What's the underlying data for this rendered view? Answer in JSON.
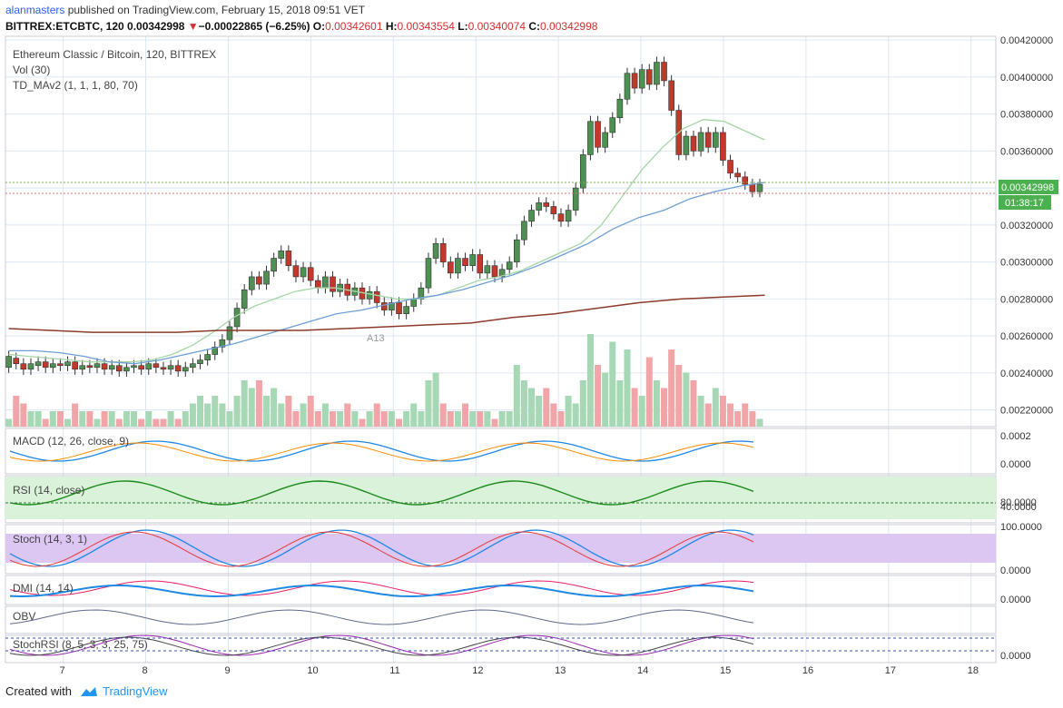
{
  "header": {
    "user": "alanmasters",
    "published": " published on TradingView.com, February 15, 2018 09:51 VET",
    "symbol": "BITTREX:ETCBTC, 120",
    "last": "0.00342998",
    "change_arrow": "▼",
    "change": "−0.00022865 (−6.25%)",
    "o_label": "O:",
    "o": "0.00342601",
    "h_label": "H:",
    "h": "0.00343554",
    "l_label": "L:",
    "l": "0.00340074",
    "c_label": "C:",
    "c": "0.00342998"
  },
  "legend": {
    "pair": "Ethereum Classic / Bitcoin, 120, BITTREX",
    "vol": "Vol (30)",
    "td": "TD_MAv2 (1, 1, 1, 80, 70)",
    "annotation": "A13"
  },
  "indicators": {
    "macd": "MACD (12, 26, close, 9)",
    "rsi": "RSI (14, close)",
    "stoch": "Stoch (14, 3, 1)",
    "dmi": "DMI (14, 14)",
    "obv": "OBV",
    "stochrsi": "StochRSI (8, 5, 3, 3, 25, 75)"
  },
  "price_badge": {
    "price": "0.00342998",
    "countdown": "01:38:17"
  },
  "footer": {
    "created": "Created with",
    "brand": "TradingView"
  },
  "colors": {
    "up": "#2e7d32",
    "down": "#c62828",
    "ma_green": "#a5d6a7",
    "ma_blue": "#6d9fd6",
    "ma_brown": "#8d3a2a",
    "grid": "#dde6f3"
  },
  "chart_data": {
    "type": "candlestick",
    "title": "Ethereum Classic / Bitcoin, 120, BITTREX",
    "x_ticks": [
      "7",
      "8",
      "9",
      "10",
      "11",
      "12",
      "13",
      "14",
      "15",
      "16",
      "17",
      "18"
    ],
    "y_ticks": [
      "0.00420000",
      "0.00400000",
      "0.00380000",
      "0.00360000",
      "0.00340000",
      "0.00320000",
      "0.00300000",
      "0.00280000",
      "0.00260000",
      "0.00240000",
      "0.00220000"
    ],
    "ylim": [
      0.00211,
      0.00422
    ],
    "x_range": [
      6.3,
      18.3
    ],
    "macd_ticks": [
      "0.0002",
      "0.0000"
    ],
    "rsi_ticks": [
      "80.0000",
      "40.0000"
    ],
    "stoch_ticks": [
      "100.0000",
      "0.0000"
    ],
    "dmi_ticks": [
      "0.0000"
    ],
    "stochrsi_ticks": [
      "0.0000"
    ],
    "ohlc": [
      [
        2.43,
        2.49
      ],
      [
        2.48,
        2.45
      ],
      [
        2.45,
        2.42
      ],
      [
        2.42,
        2.45
      ],
      [
        2.44,
        2.46
      ],
      [
        2.46,
        2.43
      ],
      [
        2.43,
        2.45
      ],
      [
        2.45,
        2.44
      ],
      [
        2.44,
        2.46
      ],
      [
        2.46,
        2.42
      ],
      [
        2.42,
        2.44
      ],
      [
        2.44,
        2.43
      ],
      [
        2.43,
        2.45
      ],
      [
        2.45,
        2.42
      ],
      [
        2.42,
        2.44
      ],
      [
        2.44,
        2.41
      ],
      [
        2.41,
        2.43
      ],
      [
        2.43,
        2.44
      ],
      [
        2.44,
        2.42
      ],
      [
        2.42,
        2.45
      ],
      [
        2.45,
        2.43
      ],
      [
        2.43,
        2.42
      ],
      [
        2.42,
        2.44
      ],
      [
        2.44,
        2.41
      ],
      [
        2.41,
        2.43
      ],
      [
        2.43,
        2.45
      ],
      [
        2.45,
        2.47
      ],
      [
        2.47,
        2.5
      ],
      [
        2.5,
        2.54
      ],
      [
        2.54,
        2.58
      ],
      [
        2.58,
        2.65
      ],
      [
        2.65,
        2.75
      ],
      [
        2.75,
        2.85
      ],
      [
        2.85,
        2.92
      ],
      [
        2.92,
        2.88
      ],
      [
        2.88,
        2.95
      ],
      [
        2.95,
        3.02
      ],
      [
        3.02,
        3.06
      ],
      [
        3.06,
        2.98
      ],
      [
        2.98,
        2.92
      ],
      [
        2.92,
        2.97
      ],
      [
        2.97,
        2.9
      ],
      [
        2.9,
        2.86
      ],
      [
        2.86,
        2.92
      ],
      [
        2.92,
        2.84
      ],
      [
        2.84,
        2.88
      ],
      [
        2.88,
        2.82
      ],
      [
        2.82,
        2.86
      ],
      [
        2.86,
        2.8
      ],
      [
        2.8,
        2.84
      ],
      [
        2.84,
        2.78
      ],
      [
        2.78,
        2.74
      ],
      [
        2.74,
        2.78
      ],
      [
        2.78,
        2.72
      ],
      [
        2.72,
        2.76
      ],
      [
        2.76,
        2.8
      ],
      [
        2.8,
        2.86
      ],
      [
        2.86,
        3.02
      ],
      [
        3.02,
        3.1
      ],
      [
        3.1,
        3.0
      ],
      [
        3.0,
        2.94
      ],
      [
        2.94,
        3.02
      ],
      [
        3.02,
        2.98
      ],
      [
        2.98,
        3.04
      ],
      [
        3.04,
        2.94
      ],
      [
        2.94,
        2.98
      ],
      [
        2.98,
        2.92
      ],
      [
        2.92,
        2.96
      ],
      [
        2.96,
        3.0
      ],
      [
        3.0,
        3.12
      ],
      [
        3.12,
        3.22
      ],
      [
        3.22,
        3.28
      ],
      [
        3.28,
        3.32
      ],
      [
        3.32,
        3.3
      ],
      [
        3.3,
        3.26
      ],
      [
        3.26,
        3.22
      ],
      [
        3.22,
        3.28
      ],
      [
        3.28,
        3.4
      ],
      [
        3.4,
        3.58
      ],
      [
        3.58,
        3.76
      ],
      [
        3.76,
        3.62
      ],
      [
        3.62,
        3.7
      ],
      [
        3.7,
        3.78
      ],
      [
        3.78,
        3.88
      ],
      [
        3.88,
        4.02
      ],
      [
        4.02,
        3.94
      ],
      [
        3.94,
        4.04
      ],
      [
        4.04,
        3.96
      ],
      [
        3.96,
        4.08
      ],
      [
        4.08,
        3.98
      ],
      [
        3.98,
        3.82
      ],
      [
        3.82,
        3.58
      ],
      [
        3.58,
        3.68
      ],
      [
        3.68,
        3.6
      ],
      [
        3.6,
        3.7
      ],
      [
        3.7,
        3.62
      ],
      [
        3.62,
        3.7
      ],
      [
        3.7,
        3.55
      ],
      [
        3.55,
        3.48
      ],
      [
        3.48,
        3.46
      ],
      [
        3.46,
        3.42
      ],
      [
        3.42,
        3.38
      ],
      [
        3.38,
        3.42
      ]
    ],
    "volumes": [
      1,
      4,
      3,
      2,
      2,
      1,
      2,
      2,
      1,
      3,
      2,
      2,
      1,
      2,
      2,
      1,
      2,
      2,
      1,
      2,
      1,
      1,
      2,
      1,
      2,
      3,
      4,
      3,
      4,
      3,
      2,
      4,
      6,
      5,
      6,
      4,
      5,
      3,
      4,
      2,
      3,
      4,
      2,
      3,
      2,
      2,
      3,
      2,
      1,
      2,
      3,
      2,
      2,
      1,
      2,
      3,
      2,
      6,
      7,
      3,
      2,
      2,
      3,
      2,
      2,
      2,
      1,
      2,
      2,
      8,
      6,
      5,
      4,
      5,
      3,
      2,
      4,
      3,
      6,
      12,
      8,
      7,
      11,
      6,
      10,
      5,
      4,
      9,
      6,
      5,
      10,
      8,
      7,
      6,
      4,
      3,
      5,
      4,
      3,
      2,
      3,
      2,
      1
    ],
    "series": [
      {
        "name": "MA green",
        "values": [
          2.5,
          2.49,
          2.48,
          2.47,
          2.46,
          2.46,
          2.46,
          2.47,
          2.5,
          2.55,
          2.62,
          2.7,
          2.76,
          2.8,
          2.84,
          2.86,
          2.86,
          2.84,
          2.82,
          2.8,
          2.8,
          2.82,
          2.86,
          2.9,
          2.92,
          2.95,
          3.0,
          3.05,
          3.1,
          3.2,
          3.35,
          3.5,
          3.62,
          3.72,
          3.77,
          3.76,
          3.71,
          3.66
        ]
      },
      {
        "name": "MA blue",
        "values": [
          2.52,
          2.52,
          2.51,
          2.49,
          2.46,
          2.45,
          2.47,
          2.5,
          2.53,
          2.56,
          2.6,
          2.64,
          2.68,
          2.72,
          2.74,
          2.77,
          2.8,
          2.82,
          2.85,
          2.89,
          2.93,
          2.98,
          3.04,
          3.1,
          3.18,
          3.24,
          3.28,
          3.34,
          3.38,
          3.41,
          3.43
        ]
      },
      {
        "name": "MA brown",
        "values": [
          2.64,
          2.63,
          2.62,
          2.62,
          2.62,
          2.63,
          2.63,
          2.63,
          2.64,
          2.65,
          2.66,
          2.67,
          2.7,
          2.72,
          2.75,
          2.78,
          2.8,
          2.81,
          2.82
        ]
      }
    ]
  }
}
